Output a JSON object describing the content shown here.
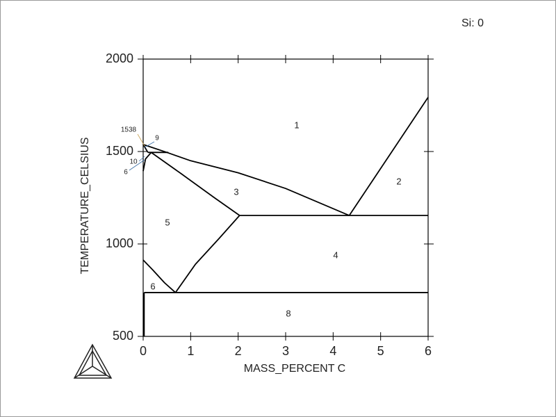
{
  "chart_data": {
    "type": "line",
    "annotation": "Si: 0",
    "xlabel": "MASS_PERCENT C",
    "ylabel": "TEMPERATURE_CELSIUS",
    "xlim": [
      0,
      6
    ],
    "ylim": [
      500,
      2000
    ],
    "xticks": [
      0,
      1,
      2,
      3,
      4,
      5,
      6
    ],
    "yticks": [
      500,
      1000,
      1500,
      2000
    ],
    "series": [
      {
        "color": "#000000",
        "x": [
          0,
          0.5,
          1,
          2,
          3,
          4.34
        ],
        "values": [
          1538,
          1495,
          1450,
          1385,
          1300,
          1154
        ]
      },
      {
        "color": "#000000",
        "x": [
          4.34,
          6
        ],
        "values": [
          1154,
          1793
        ]
      },
      {
        "color": "#000000",
        "x": [
          2.03,
          6
        ],
        "values": [
          1154,
          1154
        ]
      },
      {
        "color": "#000000",
        "x": [
          0.17,
          0.8,
          1.5,
          2.03
        ],
        "values": [
          1495,
          1380,
          1250,
          1154
        ]
      },
      {
        "color": "#000000",
        "x": [
          0.1,
          0.53
        ],
        "values": [
          1495,
          1495
        ]
      },
      {
        "color": "#000000",
        "x": [
          0,
          0.2,
          0.45,
          0.68
        ],
        "values": [
          913,
          860,
          790,
          737
        ]
      },
      {
        "color": "#000000",
        "x": [
          0.68,
          1.1,
          1.6,
          2.03
        ],
        "values": [
          737,
          890,
          1030,
          1154
        ]
      },
      {
        "color": "#000000",
        "x": [
          0.02,
          6
        ],
        "values": [
          737,
          737
        ]
      },
      {
        "color": "#000000",
        "x": [
          0.02,
          0.02
        ],
        "values": [
          500,
          737
        ]
      },
      {
        "color": "#000000",
        "x": [
          0,
          0.1
        ],
        "values": [
          1538,
          1495
        ]
      },
      {
        "color": "#000000",
        "x": [
          0,
          0.05,
          0.17
        ],
        "values": [
          1394,
          1460,
          1495
        ]
      }
    ],
    "region_labels": [
      "1",
      "2",
      "3",
      "5",
      "4",
      "6",
      "8"
    ],
    "point_labels": [
      "1538",
      "9",
      "10",
      "6"
    ]
  }
}
